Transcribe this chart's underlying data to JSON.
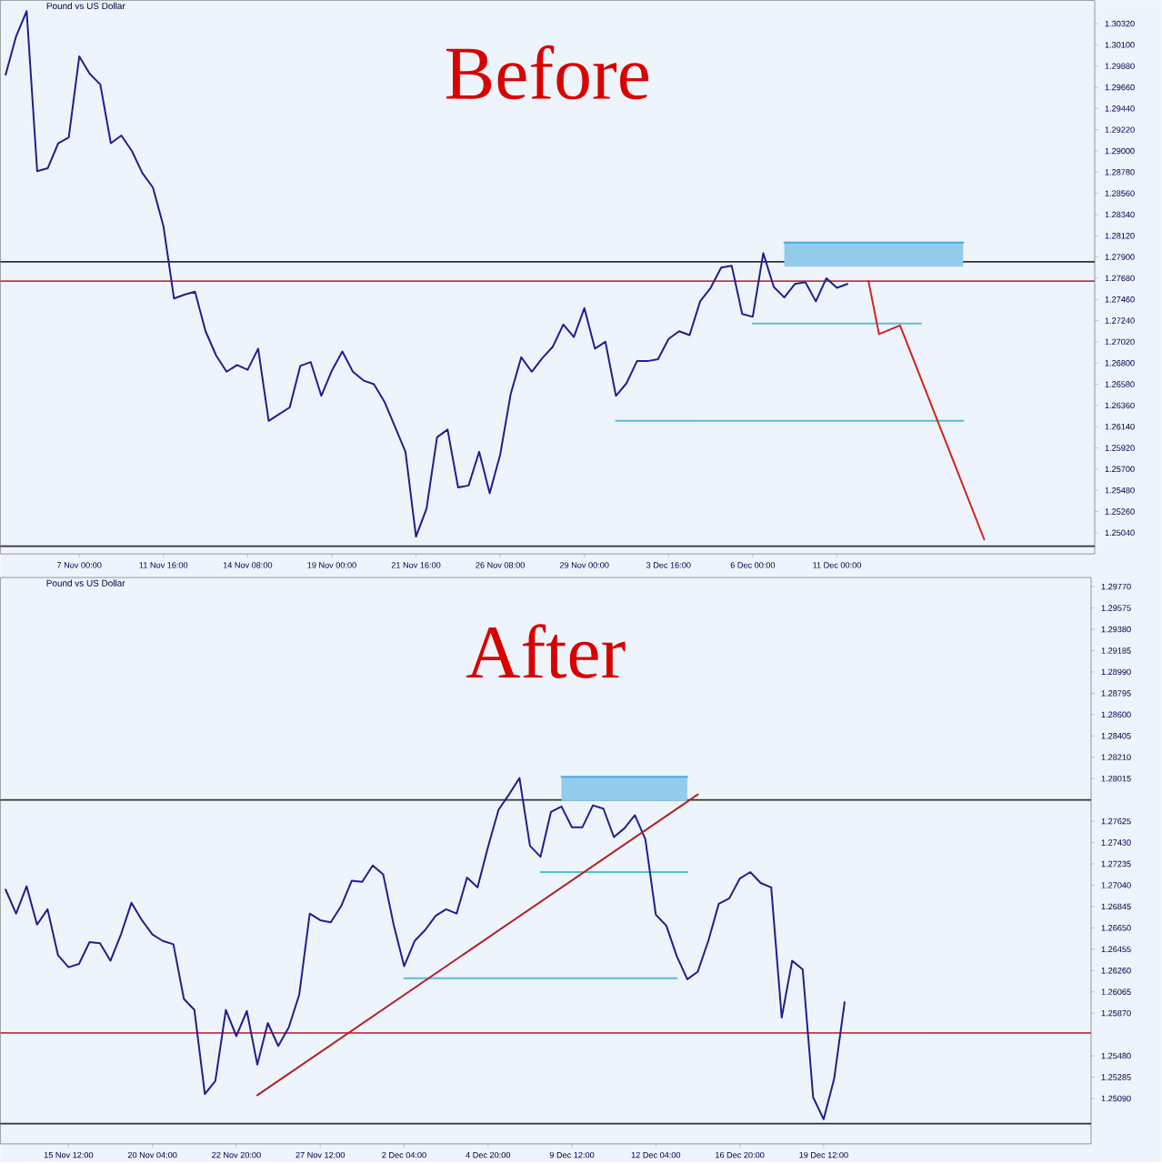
{
  "chart_data": [
    {
      "type": "line",
      "title": "Before",
      "subtitle": "Pound vs US Dollar",
      "categories": [
        null,
        null,
        null,
        null,
        null,
        null,
        null,
        "7 Nov 00:00",
        null,
        null,
        null,
        null,
        null,
        null,
        null,
        "11 Nov 16:00",
        null,
        null,
        null,
        null,
        null,
        null,
        null,
        "14 Nov 08:00",
        null,
        null,
        null,
        null,
        null,
        null,
        null,
        "19 Nov 00:00",
        null,
        null,
        null,
        null,
        null,
        null,
        null,
        "21 Nov 16:00",
        null,
        null,
        null,
        null,
        null,
        null,
        null,
        "26 Nov 08:00",
        null,
        null,
        null,
        null,
        null,
        null,
        null,
        "29 Nov 00:00",
        null,
        null,
        null,
        null,
        null,
        null,
        null,
        "3 Dec 16:00",
        null,
        null,
        null,
        null,
        null,
        null,
        null,
        "6 Dec 00:00",
        null,
        null,
        null,
        null,
        null,
        null,
        null,
        "11 Dec 00:00",
        null,
        null,
        null,
        null,
        null,
        null,
        null,
        null,
        null,
        null,
        null,
        null,
        null,
        null,
        null,
        null,
        null,
        null,
        null,
        null,
        null,
        null,
        null,
        null
      ],
      "ylim": [
        1.2482,
        1.30562
      ],
      "yticks": [
        {
          "value": 1.3032,
          "label": "1.30320"
        },
        {
          "value": 1.301,
          "label": "1.30100"
        },
        {
          "value": 1.2988,
          "label": "1.29880"
        },
        {
          "value": 1.2966,
          "label": "1.29660"
        },
        {
          "value": 1.2944,
          "label": "1.29440"
        },
        {
          "value": 1.2922,
          "label": "1.29220"
        },
        {
          "value": 1.29,
          "label": "1.29000"
        },
        {
          "value": 1.2878,
          "label": "1.28780"
        },
        {
          "value": 1.2856,
          "label": "1.28560"
        },
        {
          "value": 1.2834,
          "label": "1.28340"
        },
        {
          "value": 1.2812,
          "label": "1.28120"
        },
        {
          "value": 1.279,
          "label": "1.27900"
        },
        {
          "value": 1.2768,
          "label": "1.27680"
        },
        {
          "value": 1.2746,
          "label": "1.27460"
        },
        {
          "value": 1.2724,
          "label": "1.27240"
        },
        {
          "value": 1.2702,
          "label": "1.27020"
        },
        {
          "value": 1.268,
          "label": "1.26800"
        },
        {
          "value": 1.2658,
          "label": "1.26580"
        },
        {
          "value": 1.2636,
          "label": "1.26360"
        },
        {
          "value": 1.2614,
          "label": "1.26140"
        },
        {
          "value": 1.2592,
          "label": "1.25920"
        },
        {
          "value": 1.257,
          "label": "1.25700"
        },
        {
          "value": 1.2548,
          "label": "1.25480"
        },
        {
          "value": 1.2526,
          "label": "1.25260"
        },
        {
          "value": 1.2504,
          "label": "1.25040"
        }
      ],
      "ref_lines": [
        {
          "axis": "y",
          "value": 1.2785,
          "color": "#303030"
        },
        {
          "axis": "y",
          "value": 1.2765,
          "color": "#b04040"
        },
        {
          "axis": "y",
          "value": 1.249,
          "color": "#303030"
        }
      ],
      "series": [
        {
          "color": "#4aa8e0",
          "upper": [
            null,
            null,
            null,
            null,
            null,
            null,
            null,
            null,
            null,
            null,
            null,
            null,
            null,
            null,
            null,
            null,
            null,
            null,
            null,
            null,
            null,
            null,
            null,
            null,
            null,
            null,
            null,
            null,
            null,
            null,
            null,
            null,
            null,
            null,
            null,
            null,
            null,
            null,
            null,
            null,
            null,
            null,
            null,
            null,
            null,
            null,
            null,
            null,
            null,
            null,
            null,
            null,
            null,
            null,
            null,
            null,
            null,
            null,
            null,
            null,
            null,
            null,
            null,
            null,
            null,
            null,
            null,
            null,
            null,
            null,
            null,
            null,
            null,
            null,
            1.2805,
            null,
            null,
            null,
            null,
            null,
            null,
            null,
            null,
            null,
            null,
            null,
            null,
            null,
            null,
            null,
            null,
            1.2805,
            null,
            null,
            null,
            null,
            null,
            null,
            null,
            null,
            null,
            null,
            null,
            null
          ],
          "lower": [
            null,
            null,
            null,
            null,
            null,
            null,
            null,
            null,
            null,
            null,
            null,
            null,
            null,
            null,
            null,
            null,
            null,
            null,
            null,
            null,
            null,
            null,
            null,
            null,
            null,
            null,
            null,
            null,
            null,
            null,
            null,
            null,
            null,
            null,
            null,
            null,
            null,
            null,
            null,
            null,
            null,
            null,
            null,
            null,
            null,
            null,
            null,
            null,
            null,
            null,
            null,
            null,
            null,
            null,
            null,
            null,
            null,
            null,
            null,
            null,
            null,
            null,
            null,
            null,
            null,
            null,
            null,
            null,
            null,
            null,
            null,
            null,
            null,
            null,
            1.278,
            null,
            null,
            null,
            null,
            null,
            null,
            null,
            null,
            null,
            null,
            null,
            null,
            null,
            null,
            null,
            null,
            1.278,
            null,
            null,
            null,
            null,
            null,
            null,
            null,
            null,
            null,
            null,
            null,
            null
          ],
          "values": [
            null,
            null,
            null,
            null,
            null,
            null,
            null,
            null,
            null,
            null,
            null,
            null,
            null,
            null,
            null,
            null,
            null,
            null,
            null,
            null,
            null,
            null,
            null,
            null,
            null,
            null,
            null,
            null,
            null,
            null,
            null,
            null,
            null,
            null,
            null,
            null,
            null,
            null,
            null,
            null,
            null,
            null,
            null,
            null,
            null,
            null,
            null,
            null,
            null,
            null,
            null,
            null,
            null,
            null,
            null,
            null,
            null,
            null,
            null,
            null,
            null,
            null,
            null,
            null,
            null,
            null,
            null,
            null,
            null,
            null,
            null,
            null,
            null,
            null,
            1.2805,
            null,
            null,
            null,
            null,
            null,
            null,
            null,
            null,
            null,
            null,
            null,
            null,
            null,
            null,
            null,
            null,
            1.2805,
            null,
            null,
            null,
            null,
            null,
            null,
            null,
            null,
            null,
            null,
            null,
            null
          ]
        },
        {
          "color": "#5bbcd6",
          "values": [
            null,
            null,
            null,
            null,
            null,
            null,
            null,
            null,
            null,
            null,
            null,
            null,
            null,
            null,
            null,
            null,
            null,
            null,
            null,
            null,
            null,
            null,
            null,
            null,
            null,
            null,
            null,
            null,
            null,
            null,
            null,
            null,
            null,
            null,
            null,
            null,
            null,
            null,
            null,
            null,
            null,
            null,
            null,
            null,
            null,
            null,
            null,
            null,
            null,
            null,
            null,
            null,
            null,
            null,
            null,
            null,
            null,
            null,
            null,
            null,
            null,
            null,
            null,
            null,
            null,
            null,
            null,
            null,
            null,
            null,
            null,
            1.2721,
            null,
            null,
            null,
            null,
            null,
            null,
            null,
            null,
            null,
            null,
            null,
            null,
            null,
            null,
            null,
            1.2721,
            null,
            null,
            null,
            null,
            null,
            null,
            null,
            null,
            null,
            null,
            null,
            null,
            null,
            null,
            null,
            null
          ]
        },
        {
          "color": "#5bbcd6",
          "values": [
            null,
            null,
            null,
            null,
            null,
            null,
            null,
            null,
            null,
            null,
            null,
            null,
            null,
            null,
            null,
            null,
            null,
            null,
            null,
            null,
            null,
            null,
            null,
            null,
            null,
            null,
            null,
            null,
            null,
            null,
            null,
            null,
            null,
            null,
            null,
            null,
            null,
            null,
            null,
            null,
            null,
            null,
            null,
            null,
            null,
            null,
            null,
            null,
            null,
            null,
            null,
            null,
            null,
            null,
            null,
            null,
            null,
            null,
            1.262,
            null,
            null,
            null,
            null,
            null,
            null,
            null,
            null,
            null,
            null,
            null,
            null,
            null,
            null,
            null,
            null,
            null,
            null,
            null,
            null,
            null,
            null,
            null,
            null,
            null,
            null,
            null,
            null,
            null,
            null,
            null,
            null,
            1.262,
            null,
            null,
            null,
            null,
            null,
            null,
            null,
            null,
            null,
            null,
            null,
            null
          ]
        },
        {
          "color": "#1f1f8f",
          "values": [
            1.2979,
            1.3019,
            1.3045,
            1.2879,
            1.2882,
            1.2908,
            1.2914,
            1.2998,
            1.298,
            1.2969,
            1.2908,
            1.2916,
            1.29,
            1.2877,
            1.2862,
            1.2822,
            1.2747,
            1.2751,
            1.2754,
            1.2713,
            1.2688,
            1.2671,
            1.2678,
            1.2673,
            1.2695,
            1.262,
            1.2627,
            1.2634,
            1.2677,
            1.2681,
            1.2646,
            1.2672,
            1.2692,
            1.2671,
            1.2662,
            1.2658,
            1.264,
            1.2614,
            1.2588,
            1.25,
            1.2529,
            1.2603,
            1.2611,
            1.2551,
            1.2553,
            1.2588,
            1.2545,
            1.2585,
            1.2648,
            1.2686,
            1.2671,
            1.2685,
            1.2697,
            1.272,
            1.2707,
            1.2737,
            1.2695,
            1.2702,
            1.2646,
            1.2659,
            1.2682,
            1.2682,
            1.2684,
            1.2705,
            1.2713,
            1.2709,
            1.2744,
            1.2758,
            1.2779,
            1.2781,
            1.2731,
            1.2728,
            1.2794,
            1.2759,
            1.2748,
            1.2762,
            1.2764,
            1.2744,
            1.2768,
            1.2758,
            1.2762,
            null,
            null,
            null,
            null,
            null,
            null,
            null,
            null,
            null,
            null,
            null,
            null,
            null,
            null,
            null,
            null,
            null,
            null,
            null,
            null,
            null,
            null,
            null
          ]
        },
        {
          "color": "#d42020",
          "values": [
            null,
            null,
            null,
            null,
            null,
            null,
            null,
            null,
            null,
            null,
            null,
            null,
            null,
            null,
            null,
            null,
            null,
            null,
            null,
            null,
            null,
            null,
            null,
            null,
            null,
            null,
            null,
            null,
            null,
            null,
            null,
            null,
            null,
            null,
            null,
            null,
            null,
            null,
            null,
            null,
            null,
            null,
            null,
            null,
            null,
            null,
            null,
            null,
            null,
            null,
            null,
            null,
            null,
            null,
            null,
            null,
            null,
            null,
            null,
            null,
            null,
            null,
            null,
            null,
            null,
            null,
            null,
            null,
            null,
            null,
            null,
            null,
            null,
            null,
            null,
            null,
            null,
            null,
            null,
            null,
            null,
            null,
            1.2765,
            1.271,
            null,
            1.2719,
            null,
            null,
            null,
            null,
            null,
            null,
            null,
            1.2497,
            null,
            null,
            null,
            null,
            null,
            null,
            null,
            null,
            null,
            null
          ]
        }
      ]
    },
    {
      "type": "line",
      "title": "After",
      "subtitle": "Pound vs US Dollar",
      "categories": [
        null,
        null,
        null,
        null,
        null,
        null,
        "15 Nov 12:00",
        null,
        null,
        null,
        null,
        null,
        null,
        null,
        "20 Nov 04:00",
        null,
        null,
        null,
        null,
        null,
        null,
        null,
        "22 Nov 20:00",
        null,
        null,
        null,
        null,
        null,
        null,
        null,
        "27 Nov 12:00",
        null,
        null,
        null,
        null,
        null,
        null,
        null,
        "2 Dec 04:00",
        null,
        null,
        null,
        null,
        null,
        null,
        null,
        "4 Dec 20:00",
        null,
        null,
        null,
        null,
        null,
        null,
        null,
        "9 Dec 12:00",
        null,
        null,
        null,
        null,
        null,
        null,
        null,
        "12 Dec 04:00",
        null,
        null,
        null,
        null,
        null,
        null,
        null,
        "16 Dec 20:00",
        null,
        null,
        null,
        null,
        null,
        null,
        null,
        "19 Dec 12:00",
        null,
        null,
        null,
        null,
        null,
        null,
        null,
        null,
        null,
        null,
        null,
        null,
        null,
        null,
        null,
        null,
        null,
        null,
        null,
        null,
        null,
        null,
        null,
        null,
        null
      ],
      "ylim": [
        1.24675,
        1.29853
      ],
      "yticks": [
        {
          "value": 1.2977,
          "label": "1.29770"
        },
        {
          "value": 1.29575,
          "label": "1.29575"
        },
        {
          "value": 1.2938,
          "label": "1.29380"
        },
        {
          "value": 1.29185,
          "label": "1.29185"
        },
        {
          "value": 1.2899,
          "label": "1.28990"
        },
        {
          "value": 1.28795,
          "label": "1.28795"
        },
        {
          "value": 1.286,
          "label": "1.28600"
        },
        {
          "value": 1.28405,
          "label": "1.28405"
        },
        {
          "value": 1.2821,
          "label": "1.28210"
        },
        {
          "value": 1.28015,
          "label": "1.28015"
        },
        {
          "value": 1.27625,
          "label": "1.27625"
        },
        {
          "value": 1.2743,
          "label": "1.27430"
        },
        {
          "value": 1.27235,
          "label": "1.27235"
        },
        {
          "value": 1.2704,
          "label": "1.27040"
        },
        {
          "value": 1.26845,
          "label": "1.26845"
        },
        {
          "value": 1.2665,
          "label": "1.26650"
        },
        {
          "value": 1.26455,
          "label": "1.26455"
        },
        {
          "value": 1.2626,
          "label": "1.26260"
        },
        {
          "value": 1.26065,
          "label": "1.26065"
        },
        {
          "value": 1.2587,
          "label": "1.25870"
        },
        {
          "value": 1.2548,
          "label": "1.25480"
        },
        {
          "value": 1.25285,
          "label": "1.25285"
        },
        {
          "value": 1.2509,
          "label": "1.25090"
        }
      ],
      "ref_lines": [
        {
          "axis": "y",
          "value": 1.2782,
          "color": "#303030"
        },
        {
          "axis": "y",
          "value": 1.2569,
          "color": "#b04040"
        },
        {
          "axis": "y",
          "value": 1.2486,
          "color": "#303030"
        }
      ],
      "series": [
        {
          "color": "#4aa8e0",
          "upper": [
            null,
            null,
            null,
            null,
            null,
            null,
            null,
            null,
            null,
            null,
            null,
            null,
            null,
            null,
            null,
            null,
            null,
            null,
            null,
            null,
            null,
            null,
            null,
            null,
            null,
            null,
            null,
            null,
            null,
            null,
            null,
            null,
            null,
            null,
            null,
            null,
            null,
            null,
            null,
            null,
            null,
            null,
            null,
            null,
            null,
            null,
            null,
            null,
            null,
            null,
            null,
            null,
            null,
            1.2803,
            null,
            null,
            null,
            null,
            null,
            null,
            null,
            null,
            null,
            null,
            null,
            1.2803,
            null,
            null,
            null,
            null,
            null,
            null,
            null,
            null,
            null,
            null,
            null,
            null,
            null,
            null,
            null,
            null,
            null,
            null,
            null,
            null,
            null,
            null,
            null,
            null,
            null,
            null,
            null,
            null,
            null,
            null,
            null,
            null,
            null,
            null,
            null,
            null,
            null,
            null
          ],
          "lower": [
            null,
            null,
            null,
            null,
            null,
            null,
            null,
            null,
            null,
            null,
            null,
            null,
            null,
            null,
            null,
            null,
            null,
            null,
            null,
            null,
            null,
            null,
            null,
            null,
            null,
            null,
            null,
            null,
            null,
            null,
            null,
            null,
            null,
            null,
            null,
            null,
            null,
            null,
            null,
            null,
            null,
            null,
            null,
            null,
            null,
            null,
            null,
            null,
            null,
            null,
            null,
            null,
            null,
            1.2781,
            null,
            null,
            null,
            null,
            null,
            null,
            null,
            null,
            null,
            null,
            null,
            1.2781,
            null,
            null,
            null,
            null,
            null,
            null,
            null,
            null,
            null,
            null,
            null,
            null,
            null,
            null,
            null,
            null,
            null,
            null,
            null,
            null,
            null,
            null,
            null,
            null,
            null,
            null,
            null,
            null,
            null,
            null,
            null,
            null,
            null,
            null,
            null,
            null,
            null,
            null
          ],
          "values": [
            null,
            null,
            null,
            null,
            null,
            null,
            null,
            null,
            null,
            null,
            null,
            null,
            null,
            null,
            null,
            null,
            null,
            null,
            null,
            null,
            null,
            null,
            null,
            null,
            null,
            null,
            null,
            null,
            null,
            null,
            null,
            null,
            null,
            null,
            null,
            null,
            null,
            null,
            null,
            null,
            null,
            null,
            null,
            null,
            null,
            null,
            null,
            null,
            null,
            null,
            null,
            null,
            null,
            1.2803,
            null,
            null,
            null,
            null,
            null,
            null,
            null,
            null,
            null,
            null,
            null,
            1.2803,
            null,
            null,
            null,
            null,
            null,
            null,
            null,
            null,
            null,
            null,
            null,
            null,
            null,
            null,
            null,
            null,
            null,
            null,
            null,
            null,
            null,
            null,
            null,
            null,
            null,
            null,
            null,
            null,
            null,
            null,
            null,
            null,
            null,
            null,
            null,
            null,
            null,
            null
          ]
        },
        {
          "color": "#5bbcd6",
          "values": [
            null,
            null,
            null,
            null,
            null,
            null,
            null,
            null,
            null,
            null,
            null,
            null,
            null,
            null,
            null,
            null,
            null,
            null,
            null,
            null,
            null,
            null,
            null,
            null,
            null,
            null,
            null,
            null,
            null,
            null,
            null,
            null,
            null,
            null,
            null,
            null,
            null,
            null,
            null,
            null,
            null,
            null,
            null,
            null,
            null,
            null,
            null,
            null,
            null,
            null,
            null,
            1.2716,
            null,
            null,
            null,
            null,
            null,
            null,
            null,
            null,
            null,
            null,
            null,
            null,
            null,
            1.2716,
            null,
            null,
            null,
            null,
            null,
            null,
            null,
            null,
            null,
            null,
            null,
            null,
            null,
            null,
            null,
            null,
            null,
            null,
            null,
            null,
            null,
            null,
            null,
            null,
            null,
            null,
            null,
            null,
            null,
            null,
            null,
            null,
            null,
            null,
            null,
            null,
            null,
            null
          ]
        },
        {
          "color": "#5bbcd6",
          "values": [
            null,
            null,
            null,
            null,
            null,
            null,
            null,
            null,
            null,
            null,
            null,
            null,
            null,
            null,
            null,
            null,
            null,
            null,
            null,
            null,
            null,
            null,
            null,
            null,
            null,
            null,
            null,
            null,
            null,
            null,
            null,
            null,
            null,
            null,
            null,
            null,
            null,
            null,
            1.2619,
            null,
            null,
            null,
            null,
            null,
            null,
            null,
            null,
            null,
            null,
            null,
            null,
            null,
            null,
            null,
            null,
            null,
            null,
            null,
            null,
            null,
            null,
            null,
            null,
            null,
            1.2619,
            null,
            null,
            null,
            null,
            null,
            null,
            null,
            null,
            null,
            null,
            null,
            null,
            null,
            null,
            null,
            null,
            null,
            null,
            null,
            null,
            null,
            null,
            null,
            null,
            null,
            null,
            null,
            null,
            null,
            null,
            null,
            null,
            null,
            null,
            null,
            null,
            null,
            null,
            null
          ]
        },
        {
          "color": "#1f1f8f",
          "values": [
            1.27,
            1.2678,
            1.2703,
            1.2668,
            1.2682,
            1.264,
            1.2629,
            1.2632,
            1.2652,
            1.2651,
            1.2635,
            1.2659,
            1.2688,
            1.2672,
            1.2659,
            1.2653,
            1.265,
            1.26,
            1.259,
            1.2513,
            1.2525,
            1.259,
            1.2566,
            1.2589,
            1.254,
            1.2578,
            1.2557,
            1.2574,
            1.2604,
            1.2678,
            1.2672,
            1.267,
            1.2685,
            1.2708,
            1.2707,
            1.2722,
            1.2714,
            1.2668,
            1.263,
            1.2653,
            1.2663,
            1.2676,
            1.2682,
            1.2678,
            1.2711,
            1.2702,
            1.2739,
            1.2773,
            1.2787,
            1.2802,
            1.274,
            1.273,
            1.2771,
            1.2776,
            1.2757,
            1.2757,
            1.2777,
            1.2774,
            1.2748,
            1.2756,
            1.2768,
            1.2746,
            1.2677,
            1.2667,
            1.2639,
            1.2618,
            1.2625,
            1.2653,
            1.2687,
            1.2692,
            1.271,
            1.2716,
            1.2706,
            1.2702,
            1.2583,
            1.2635,
            1.2627,
            1.251,
            1.249,
            1.2527,
            1.2597,
            null,
            null,
            null,
            null,
            null,
            null,
            null,
            null,
            null,
            null,
            null,
            null,
            null,
            null,
            null,
            null,
            null,
            null,
            null,
            null,
            null,
            null,
            null
          ]
        },
        {
          "color": "#b22222",
          "values": [
            null,
            null,
            null,
            null,
            null,
            null,
            null,
            null,
            null,
            null,
            null,
            null,
            null,
            null,
            null,
            null,
            null,
            null,
            null,
            null,
            null,
            null,
            null,
            null,
            1.2512,
            null,
            null,
            null,
            null,
            null,
            null,
            null,
            null,
            null,
            null,
            null,
            null,
            null,
            null,
            null,
            null,
            null,
            null,
            null,
            null,
            null,
            null,
            null,
            null,
            null,
            null,
            null,
            null,
            null,
            null,
            null,
            null,
            null,
            null,
            null,
            null,
            null,
            null,
            null,
            null,
            null,
            1.2787,
            null,
            null,
            null,
            null,
            null,
            null,
            null,
            null,
            null,
            null,
            null,
            null,
            null,
            null,
            null,
            null,
            null,
            null,
            null,
            null,
            null,
            null,
            null,
            null,
            null,
            null,
            null,
            null,
            null,
            null,
            null,
            null,
            null,
            null,
            null,
            null,
            null
          ]
        }
      ]
    }
  ]
}
